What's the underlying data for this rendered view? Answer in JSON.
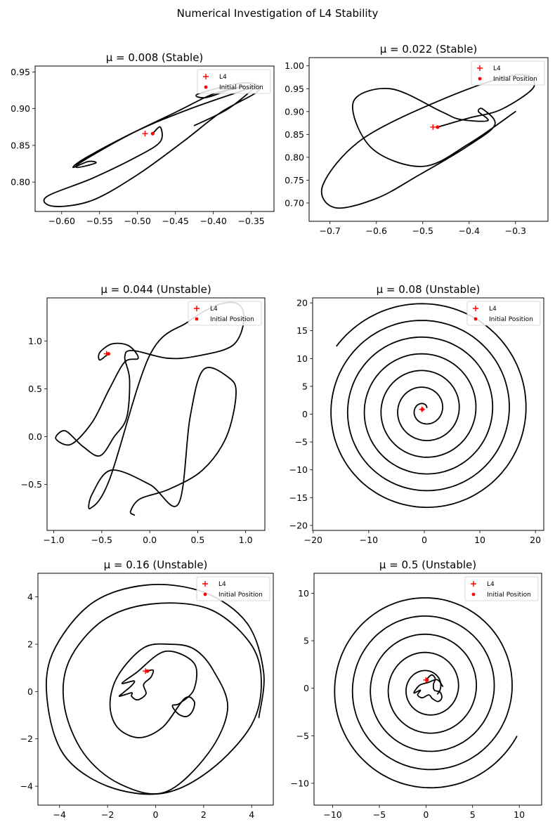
{
  "figure": {
    "suptitle": "Numerical Investigation of L4 Stability",
    "colors": {
      "trajectory": "#000000",
      "marker": "#ff0000",
      "legend_border": "#cccccc"
    }
  },
  "chart_data": [
    {
      "type": "line",
      "title": "μ = 0.008 (Stable)",
      "mu": 0.008,
      "xlim": [
        -0.635,
        -0.32
      ],
      "ylim": [
        0.76,
        0.958
      ],
      "xticks": [
        -0.6,
        -0.55,
        -0.5,
        -0.45,
        -0.4,
        -0.35
      ],
      "xtick_labels": [
        "−0.60",
        "−0.55",
        "−0.50",
        "−0.45",
        "−0.40",
        "−0.35"
      ],
      "yticks": [
        0.8,
        0.85,
        0.9,
        0.95
      ],
      "ytick_labels": [
        "0.80",
        "0.85",
        "0.90",
        "0.95"
      ],
      "series": [
        {
          "role": "trajectory",
          "x": [
            -0.48,
            -0.47,
            -0.47,
            -0.5,
            -0.56,
            -0.62,
            -0.61,
            -0.56,
            -0.5,
            -0.44,
            -0.39,
            -0.34,
            -0.36,
            -0.42,
            -0.41,
            -0.38,
            -0.36,
            -0.4,
            -0.45,
            -0.52,
            -0.57,
            -0.585,
            -0.565,
            -0.555,
            -0.58,
            -0.57,
            -0.5,
            -0.43,
            -0.36,
            -0.345,
            -0.38,
            -0.425
          ],
          "y": [
            0.866,
            0.875,
            0.855,
            0.835,
            0.805,
            0.78,
            0.767,
            0.775,
            0.81,
            0.855,
            0.895,
            0.925,
            0.935,
            0.92,
            0.915,
            0.925,
            0.93,
            0.92,
            0.895,
            0.86,
            0.832,
            0.82,
            0.828,
            0.826,
            0.82,
            0.83,
            0.87,
            0.9,
            0.925,
            0.93,
            0.9,
            0.877
          ]
        }
      ],
      "l4": {
        "label": "L4",
        "x": -0.49,
        "y": 0.866
      },
      "initial_position": {
        "label": "Initial Position",
        "x": -0.48,
        "y": 0.866
      },
      "legend_position": "top-right"
    },
    {
      "type": "line",
      "title": "μ = 0.022 (Stable)",
      "mu": 0.022,
      "xlim": [
        -0.745,
        -0.23
      ],
      "ylim": [
        0.66,
        1.018
      ],
      "xticks": [
        -0.7,
        -0.6,
        -0.5,
        -0.4,
        -0.3
      ],
      "xtick_labels": [
        "−0.7",
        "−0.6",
        "−0.5",
        "−0.4",
        "−0.3"
      ],
      "yticks": [
        0.7,
        0.75,
        0.8,
        0.85,
        0.9,
        0.95,
        1.0
      ],
      "ytick_labels": [
        "0.70",
        "0.75",
        "0.80",
        "0.85",
        "0.90",
        "0.95",
        "1.00"
      ],
      "series": [
        {
          "role": "trajectory",
          "x": [
            -0.468,
            -0.4,
            -0.33,
            -0.26,
            -0.3,
            -0.45,
            -0.63,
            -0.715,
            -0.69,
            -0.6,
            -0.51,
            -0.41,
            -0.345,
            -0.37,
            -0.38,
            -0.36,
            -0.42,
            -0.46,
            -0.57,
            -0.65,
            -0.61,
            -0.5,
            -0.4,
            -0.3
          ],
          "y": [
            0.866,
            0.886,
            0.905,
            0.955,
            0.98,
            0.93,
            0.84,
            0.74,
            0.69,
            0.71,
            0.76,
            0.82,
            0.87,
            0.905,
            0.9,
            0.88,
            0.883,
            0.9,
            0.95,
            0.92,
            0.82,
            0.78,
            0.83,
            0.9
          ]
        }
      ],
      "l4": {
        "label": "L4",
        "x": -0.478,
        "y": 0.866
      },
      "initial_position": {
        "label": "Initial Position",
        "x": -0.468,
        "y": 0.866
      },
      "legend_position": "top-right"
    },
    {
      "type": "line",
      "title": "μ = 0.044 (Unstable)",
      "mu": 0.044,
      "xlim": [
        -1.07,
        1.2
      ],
      "ylim": [
        -0.98,
        1.45
      ],
      "xticks": [
        -1.0,
        -0.5,
        0.0,
        0.5,
        1.0
      ],
      "xtick_labels": [
        "−1.0",
        "−0.5",
        "0.0",
        "0.5",
        "1.0"
      ],
      "yticks": [
        -0.5,
        0.0,
        0.5,
        1.0
      ],
      "ytick_labels": [
        "−0.5",
        "0.0",
        "0.5",
        "1.0"
      ],
      "series": [
        {
          "role": "trajectory",
          "x": [
            -0.43,
            -0.52,
            -0.52,
            -0.39,
            -0.22,
            -0.12,
            -0.26,
            -0.42,
            -0.6,
            -0.82,
            -0.98,
            -0.88,
            -0.7,
            -0.52,
            -0.37,
            -0.24,
            -0.21,
            -0.26,
            -0.18,
            0.18,
            0.48,
            0.86,
            0.98,
            0.93,
            0.72,
            0.4,
            0.0,
            -0.42,
            -0.62,
            -0.6,
            -0.4,
            0.0,
            0.3,
            0.42,
            0.56,
            0.82,
            0.9,
            0.8,
            0.55,
            0.2,
            -0.1,
            -0.2,
            -0.16
          ],
          "y": [
            0.87,
            0.8,
            0.88,
            0.97,
            0.95,
            0.82,
            0.78,
            0.5,
            0.15,
            -0.08,
            -0.02,
            0.06,
            -0.1,
            -0.2,
            0.0,
            0.2,
            0.6,
            0.83,
            0.9,
            0.82,
            0.84,
            0.95,
            1.2,
            1.38,
            1.38,
            1.2,
            0.85,
            -0.45,
            -0.75,
            -0.6,
            -0.35,
            -0.5,
            -0.7,
            0.2,
            0.7,
            0.62,
            0.45,
            0.0,
            -0.35,
            -0.55,
            -0.65,
            -0.78,
            -0.82
          ]
        }
      ],
      "l4": {
        "label": "L4",
        "x": -0.45,
        "y": 0.866
      },
      "initial_position": {
        "label": "Initial Position",
        "x": -0.43,
        "y": 0.866
      },
      "legend_position": "top-right"
    },
    {
      "type": "line",
      "title": "μ = 0.08 (Unstable)",
      "mu": 0.08,
      "xlim": [
        -20.1,
        21.5
      ],
      "ylim": [
        -20.9,
        20.9
      ],
      "xticks": [
        -20,
        -10,
        0,
        10,
        20
      ],
      "xtick_labels": [
        "−20",
        "−10",
        "0",
        "10",
        "20"
      ],
      "yticks": [
        -20,
        -15,
        -10,
        -5,
        0,
        5,
        10,
        15,
        20
      ],
      "ytick_labels": [
        "−20",
        "−15",
        "−10",
        "−5",
        "0",
        "5",
        "10",
        "15",
        "20"
      ],
      "spiral": {
        "center_x": 0.0,
        "center_y": 0.8,
        "r_start": 0.6,
        "r_end": 19.5,
        "turns": 6.6,
        "theta_start_deg": 40,
        "theta_end_deg": -72
      },
      "l4": {
        "label": "L4",
        "x": -0.42,
        "y": 0.866
      },
      "initial_position": {
        "label": "Initial Position",
        "x": -0.36,
        "y": 0.866
      },
      "legend_position": "top-right"
    },
    {
      "type": "line",
      "title": "μ = 0.16 (Unstable)",
      "mu": 0.16,
      "xlim": [
        -4.9,
        4.9
      ],
      "ylim": [
        -4.8,
        5.0
      ],
      "xticks": [
        -4,
        -2,
        0,
        2,
        4
      ],
      "xtick_labels": [
        "−4",
        "−2",
        "0",
        "2",
        "4"
      ],
      "yticks": [
        -4,
        -2,
        0,
        2,
        4
      ],
      "ytick_labels": [
        "−4",
        "−2",
        "0",
        "2",
        "4"
      ],
      "series": [
        {
          "role": "trajectory",
          "x": [
            -0.34,
            -0.1,
            -0.2,
            -0.5,
            -0.4,
            -0.75,
            -1.0,
            -1.0,
            -1.5,
            -1.35,
            -1.0,
            -0.9,
            -1.4,
            -0.8,
            0.4,
            1.6,
            1.6,
            1.0,
            0.7,
            0.95,
            1.3,
            1.55,
            1.6,
            1.2,
            0.3,
            -0.7,
            -1.6,
            -1.9,
            -1.55,
            -0.5,
            0.6,
            1.6,
            2.4,
            3.0,
            2.2,
            0.4,
            -1.5,
            -3.0,
            -3.8,
            -3.6,
            -2.2,
            -0.2,
            2.2,
            3.9,
            4.4,
            4.0,
            2.3,
            0.3,
            -2.0,
            -3.8,
            -4.5,
            -4.3,
            -2.7,
            -0.4,
            2.0,
            3.8,
            4.5,
            4.3
          ],
          "y": [
            0.866,
            0.9,
            0.6,
            0.3,
            -0.1,
            -0.35,
            -0.2,
            -0.05,
            -0.2,
            -0.05,
            0.25,
            0.45,
            0.35,
            0.8,
            1.7,
            1.2,
            0.1,
            -0.5,
            -0.6,
            -0.95,
            -1.05,
            -0.8,
            -0.4,
            -0.3,
            -1.5,
            -1.95,
            -1.5,
            -0.5,
            0.7,
            1.85,
            2.0,
            1.8,
            0.9,
            -0.7,
            -2.6,
            -4.25,
            -3.9,
            -2.6,
            -0.6,
            1.3,
            3.0,
            3.7,
            3.5,
            2.1,
            0.5,
            -1.4,
            -3.3,
            -4.3,
            -4.0,
            -2.7,
            -0.5,
            1.6,
            3.7,
            4.5,
            4.2,
            2.9,
            0.8,
            -1.1
          ]
        }
      ],
      "l4": {
        "label": "L4",
        "x": -0.42,
        "y": 0.866
      },
      "initial_position": {
        "label": "Initial Position",
        "x": -0.34,
        "y": 0.866
      },
      "legend_position": "top-right"
    },
    {
      "type": "line",
      "title": "μ = 0.5 (Unstable)",
      "mu": 0.5,
      "xlim": [
        -12.0,
        12.4
      ],
      "ylim": [
        -12.3,
        12.1
      ],
      "xticks": [
        -10,
        -5,
        0,
        5,
        10
      ],
      "xtick_labels": [
        "−10",
        "−5",
        "0",
        "5",
        "10"
      ],
      "yticks": [
        -10,
        -5,
        0,
        5,
        10
      ],
      "ytick_labels": [
        "−10",
        "−5",
        "0",
        "5",
        "10"
      ],
      "spiral": {
        "center_x": 0.2,
        "center_y": 0.0,
        "r_start": 1.2,
        "r_end": 10.8,
        "turns": 5.2,
        "theta_start_deg": -30,
        "theta_end_deg": -100
      },
      "wiggle": {
        "x": [
          0.0,
          0.6,
          1.0,
          0.8,
          0.9,
          1.5,
          1.7,
          1.3,
          0.7,
          0.3,
          -0.4,
          -0.9,
          -0.6,
          -1.3,
          -0.7,
          0.2,
          1.2,
          1.8
        ],
        "y": [
          0.866,
          1.4,
          1.0,
          0.4,
          -0.2,
          -0.4,
          -1.0,
          -1.4,
          -1.1,
          -0.7,
          -1.0,
          -0.7,
          -0.2,
          -0.5,
          0.3,
          0.6,
          0.9,
          0.2
        ]
      },
      "l4": {
        "label": "L4",
        "x": 0.0,
        "y": 0.866
      },
      "initial_position": {
        "label": "Initial Position",
        "x": 0.1,
        "y": 0.866
      },
      "legend_position": "top-right"
    }
  ]
}
